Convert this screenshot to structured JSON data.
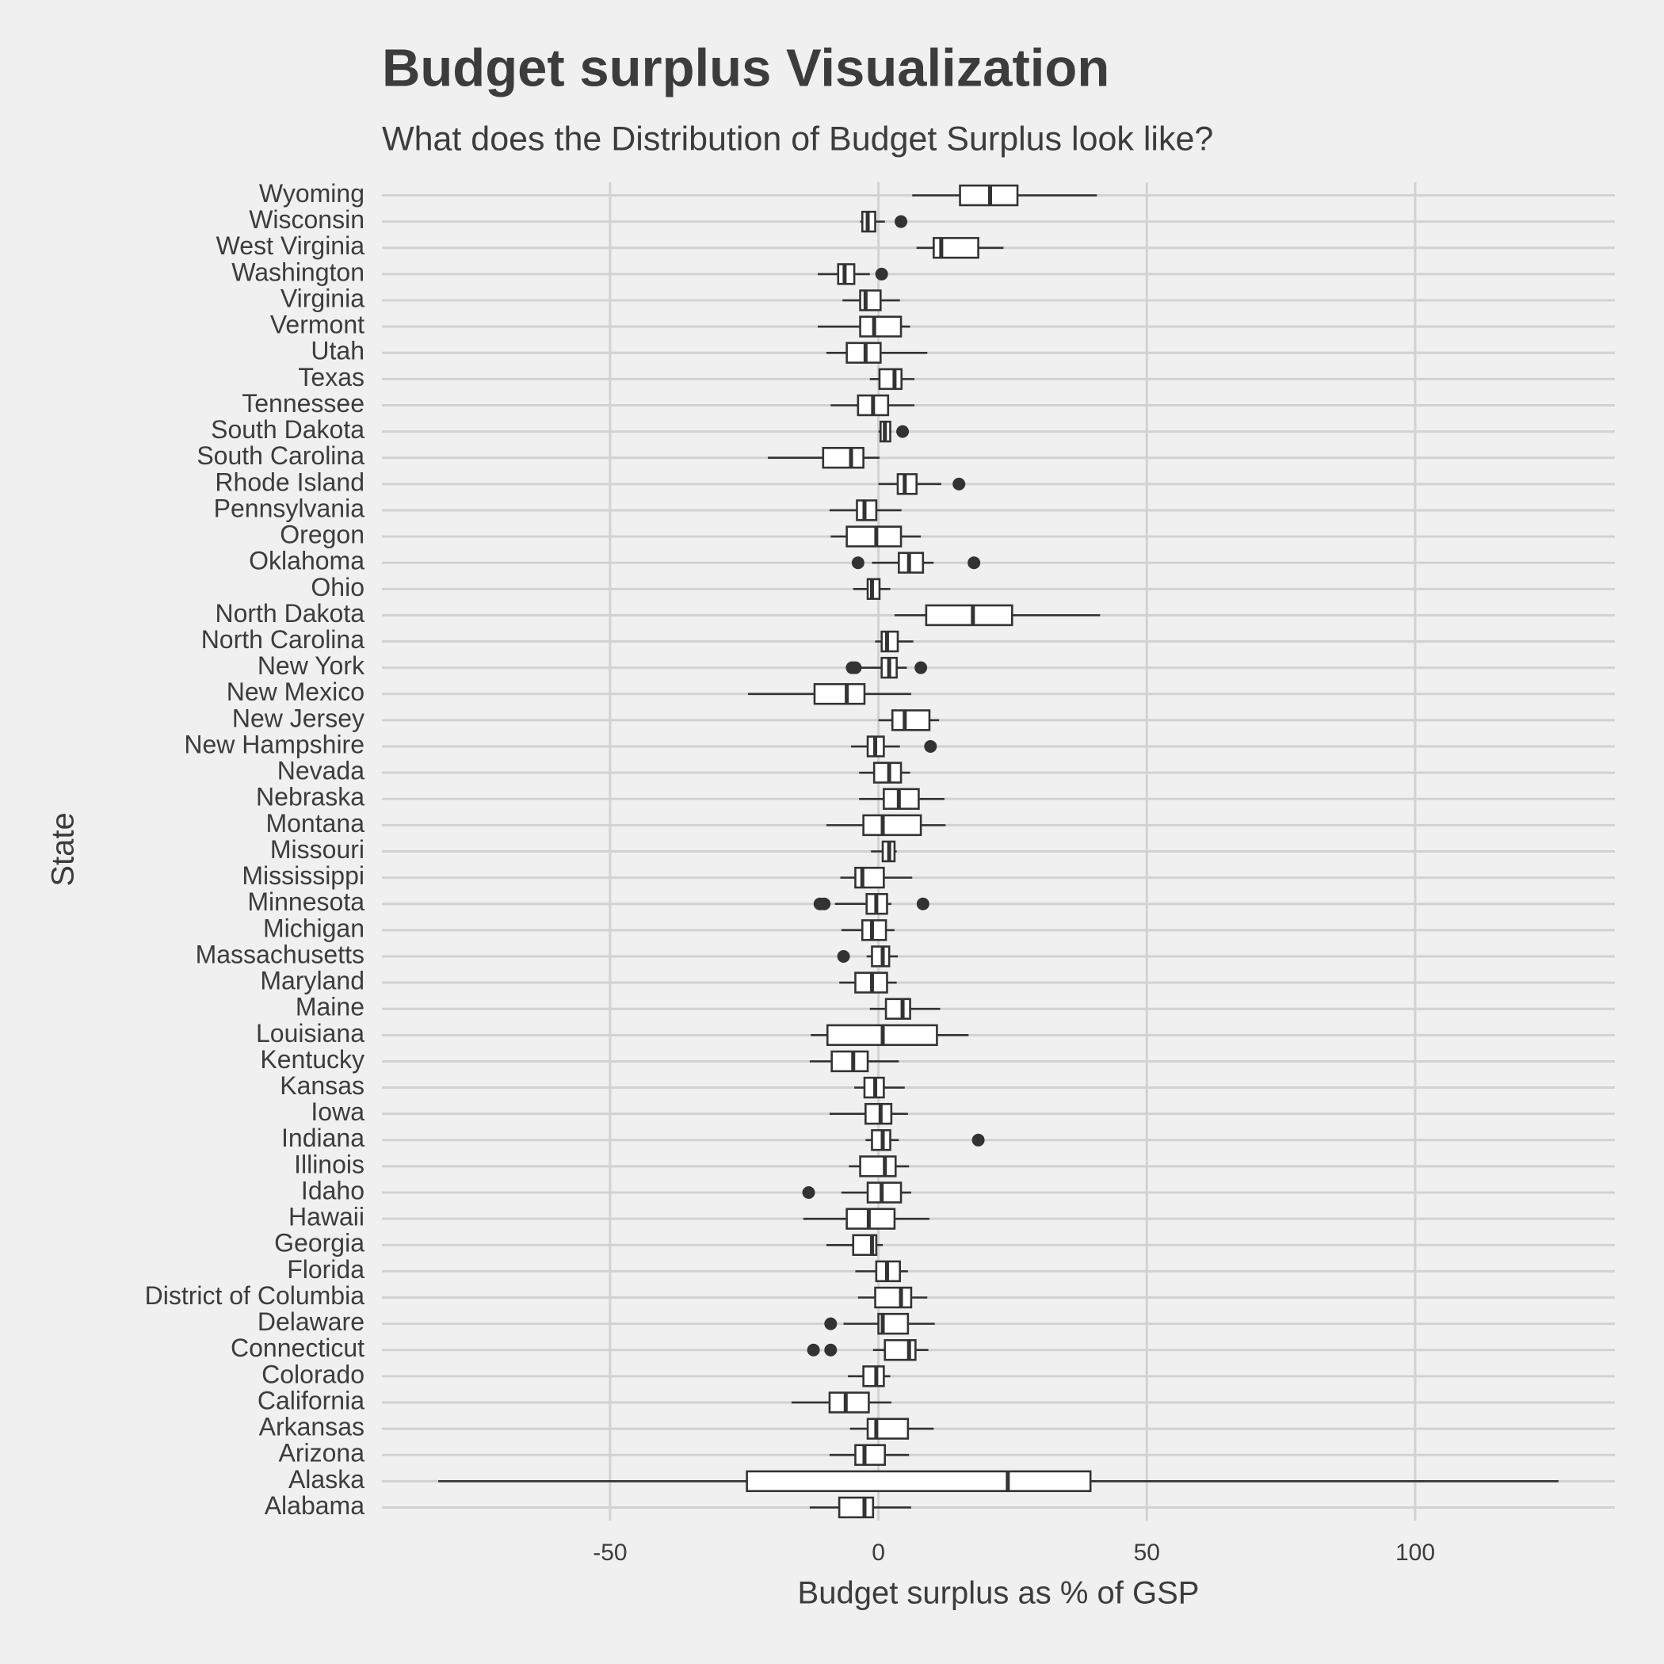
{
  "chart_data": {
    "type": "boxplot",
    "orientation": "horizontal",
    "title": "Budget surplus Visualization",
    "subtitle": "What does the Distribution of Budget Surplus look like?",
    "x_label": "Budget surplus as % of GSP",
    "y_label": "State",
    "xlim": [
      -92.5,
      137.2
    ],
    "xticks": [
      -50,
      0,
      50,
      100
    ],
    "grid": true,
    "color": "#ffffff",
    "line_color": "#333333",
    "categories": [
      "Alabama",
      "Alaska",
      "Arizona",
      "Arkansas",
      "California",
      "Colorado",
      "Connecticut",
      "Delaware",
      "District of Columbia",
      "Florida",
      "Georgia",
      "Hawaii",
      "Idaho",
      "Illinois",
      "Indiana",
      "Iowa",
      "Kansas",
      "Kentucky",
      "Louisiana",
      "Maine",
      "Maryland",
      "Massachusetts",
      "Michigan",
      "Minnesota",
      "Mississippi",
      "Missouri",
      "Montana",
      "Nebraska",
      "Nevada",
      "New Hampshire",
      "New Jersey",
      "New Mexico",
      "New York",
      "North Carolina",
      "North Dakota",
      "Ohio",
      "Oklahoma",
      "Oregon",
      "Pennsylvania",
      "Rhode Island",
      "South Carolina",
      "South Dakota",
      "Tennessee",
      "Texas",
      "Utah",
      "Vermont",
      "Virginia",
      "Washington",
      "West Virginia",
      "Wisconsin",
      "Wyoming"
    ],
    "boxes": [
      {
        "low": -12.8,
        "q1": -7.3,
        "median": -2.6,
        "q3": -1.0,
        "high": 6.1
      },
      {
        "low": -82.0,
        "q1": -24.5,
        "median": 24.1,
        "q3": 39.5,
        "high": 126.7
      },
      {
        "low": -9.1,
        "q1": -4.3,
        "median": -2.6,
        "q3": 1.2,
        "high": 5.7
      },
      {
        "low": -5.3,
        "q1": -2.0,
        "median": -0.4,
        "q3": 5.5,
        "high": 10.3
      },
      {
        "low": -16.2,
        "q1": -9.1,
        "median": -6.1,
        "q3": -1.8,
        "high": 2.4
      },
      {
        "low": -5.7,
        "q1": -2.8,
        "median": -0.4,
        "q3": 1.0,
        "high": 2.2
      },
      {
        "low": -1.0,
        "q1": 1.2,
        "median": 5.7,
        "q3": 6.9,
        "high": 9.3,
        "outliers": [
          -12.1,
          -8.9
        ]
      },
      {
        "low": -6.5,
        "q1": 0,
        "median": 0.8,
        "q3": 5.5,
        "high": 10.5,
        "outliers": [
          -8.9
        ]
      },
      {
        "low": -3.8,
        "q1": -0.6,
        "median": 4.2,
        "q3": 6.1,
        "high": 9.1
      },
      {
        "low": -4.3,
        "q1": -0.4,
        "median": 1.6,
        "q3": 4.0,
        "high": 5.5
      },
      {
        "low": -9.7,
        "q1": -4.7,
        "median": -1.2,
        "q3": -0.4,
        "high": 0.8
      },
      {
        "low": -14.0,
        "q1": -5.9,
        "median": -1.8,
        "q3": 3.0,
        "high": 9.5
      },
      {
        "low": -6.9,
        "q1": -2.0,
        "median": 0.6,
        "q3": 4.2,
        "high": 6.1,
        "outliers": [
          -13.0
        ]
      },
      {
        "low": -5.5,
        "q1": -3.4,
        "median": 1.2,
        "q3": 3.2,
        "high": 5.7
      },
      {
        "low": -2.4,
        "q1": -1.2,
        "median": 0.8,
        "q3": 2.2,
        "high": 3.8,
        "outliers": [
          18.6
        ]
      },
      {
        "low": -9.1,
        "q1": -2.4,
        "median": 0.4,
        "q3": 2.4,
        "high": 5.5
      },
      {
        "low": -4.5,
        "q1": -2.6,
        "median": -0.6,
        "q3": 1.0,
        "high": 4.9
      },
      {
        "low": -12.8,
        "q1": -8.7,
        "median": -4.7,
        "q3": -2.0,
        "high": 3.8
      },
      {
        "low": -12.6,
        "q1": -9.5,
        "median": 0.8,
        "q3": 10.9,
        "high": 16.8
      },
      {
        "low": -1.6,
        "q1": 1.4,
        "median": 4.5,
        "q3": 5.9,
        "high": 11.5
      },
      {
        "low": -7.3,
        "q1": -4.3,
        "median": -1.2,
        "q3": 1.6,
        "high": 3.4
      },
      {
        "low": -2.2,
        "q1": -1.2,
        "median": 0.8,
        "q3": 2.0,
        "high": 3.6,
        "outliers": [
          -6.5
        ]
      },
      {
        "low": -6.9,
        "q1": -3.0,
        "median": -1.2,
        "q3": 1.4,
        "high": 3.0
      },
      {
        "low": -8.1,
        "q1": -2.2,
        "median": -0.4,
        "q3": 1.6,
        "high": 2.4,
        "outliers": [
          -10.9,
          -10.1,
          8.3
        ]
      },
      {
        "low": -7.1,
        "q1": -4.3,
        "median": -3.0,
        "q3": 1.0,
        "high": 6.3
      },
      {
        "low": -1.4,
        "q1": 0.8,
        "median": 2.0,
        "q3": 3.0,
        "high": 3.4
      },
      {
        "low": -9.7,
        "q1": -2.8,
        "median": 0.8,
        "q3": 7.9,
        "high": 12.5
      },
      {
        "low": -3.6,
        "q1": 1.0,
        "median": 3.8,
        "q3": 7.5,
        "high": 12.3
      },
      {
        "low": -3.6,
        "q1": -0.8,
        "median": 2.0,
        "q3": 4.2,
        "high": 5.9
      },
      {
        "low": -5.1,
        "q1": -2.0,
        "median": -0.6,
        "q3": 1.0,
        "high": 4.0,
        "outliers": [
          9.7
        ]
      },
      {
        "low": 0,
        "q1": 2.6,
        "median": 4.9,
        "q3": 9.5,
        "high": 11.3
      },
      {
        "low": -24.3,
        "q1": -11.9,
        "median": -5.9,
        "q3": -2.6,
        "high": 6.1
      },
      {
        "low": -4.0,
        "q1": 0.6,
        "median": 2.0,
        "q3": 3.4,
        "high": 5.3,
        "outliers": [
          -4.9,
          -4.3,
          7.9
        ]
      },
      {
        "low": -0.6,
        "q1": 0.6,
        "median": 1.6,
        "q3": 3.6,
        "high": 6.5
      },
      {
        "low": 3.0,
        "q1": 8.9,
        "median": 17.6,
        "q3": 24.9,
        "high": 41.3
      },
      {
        "low": -4.7,
        "q1": -2.0,
        "median": -1.2,
        "q3": 0.2,
        "high": 2.2
      },
      {
        "low": -1.2,
        "q1": 3.8,
        "median": 5.7,
        "q3": 8.3,
        "high": 10.3,
        "outliers": [
          -3.8,
          17.8
        ]
      },
      {
        "low": -8.9,
        "q1": -5.9,
        "median": -0.4,
        "q3": 4.2,
        "high": 7.9
      },
      {
        "low": -9.1,
        "q1": -4.0,
        "median": -2.6,
        "q3": -0.4,
        "high": 4.3
      },
      {
        "low": 0,
        "q1": 3.6,
        "median": 4.9,
        "q3": 7.1,
        "high": 11.7,
        "outliers": [
          15.0
        ]
      },
      {
        "low": -20.6,
        "q1": -10.3,
        "median": -5.1,
        "q3": -2.8,
        "high": 0.2
      },
      {
        "low": 0,
        "q1": 0.4,
        "median": 1.2,
        "q3": 2.2,
        "high": 2.4,
        "outliers": [
          4.5
        ]
      },
      {
        "low": -8.9,
        "q1": -3.8,
        "median": -1.0,
        "q3": 1.8,
        "high": 6.7
      },
      {
        "low": -1.6,
        "q1": 0.2,
        "median": 3.0,
        "q3": 4.3,
        "high": 6.7
      },
      {
        "low": -9.7,
        "q1": -5.9,
        "median": -2.4,
        "q3": 0.4,
        "high": 9.1
      },
      {
        "low": -11.3,
        "q1": -3.4,
        "median": -0.8,
        "q3": 4.2,
        "high": 5.9
      },
      {
        "low": -6.7,
        "q1": -3.4,
        "median": -2.4,
        "q3": 0.4,
        "high": 4.0
      },
      {
        "low": -11.3,
        "q1": -7.5,
        "median": -6.3,
        "q3": -4.5,
        "high": -1.6,
        "outliers": [
          0.6
        ]
      },
      {
        "low": 7.1,
        "q1": 10.3,
        "median": 11.7,
        "q3": 18.6,
        "high": 23.3
      },
      {
        "low": -3.4,
        "q1": -3.0,
        "median": -2.0,
        "q3": -0.6,
        "high": 1.2,
        "outliers": [
          4.2
        ]
      },
      {
        "low": 6.3,
        "q1": 15.2,
        "median": 20.8,
        "q3": 25.9,
        "high": 40.7
      }
    ]
  }
}
